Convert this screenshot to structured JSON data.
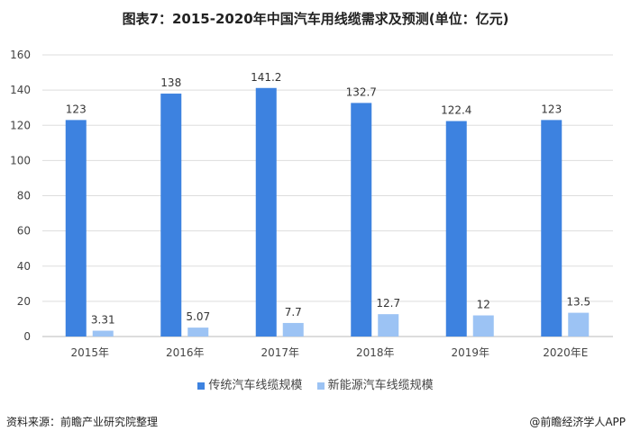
{
  "chart_data": {
    "type": "bar",
    "title": "图表7：2015-2020年中国汽车用线缆需求及预测(单位：亿元)",
    "categories": [
      "2015年",
      "2016年",
      "2017年",
      "2018年",
      "2019年",
      "2020年E"
    ],
    "series": [
      {
        "name": "传统汽车线缆规模",
        "values": [
          123,
          138,
          141.2,
          132.7,
          122.4,
          123
        ],
        "labels": [
          "123",
          "138",
          "141.2",
          "132.7",
          "122.4",
          "123"
        ],
        "color": "#3d82e0"
      },
      {
        "name": "新能源汽车线缆规模",
        "values": [
          3.31,
          5.07,
          7.7,
          12.7,
          12,
          13.5
        ],
        "labels": [
          "3.31",
          "5.07",
          "7.7",
          "12.7",
          "12",
          "13.5"
        ],
        "color": "#9cc3f4"
      }
    ],
    "ylim": [
      0,
      160
    ],
    "yticks": [
      "0",
      "20",
      "40",
      "60",
      "80",
      "100",
      "120",
      "140",
      "160"
    ],
    "grid": true,
    "legend": "bottom"
  },
  "footer": {
    "source": "资料来源：前瞻产业研究院整理",
    "brand": "@前瞻经济学人APP"
  }
}
